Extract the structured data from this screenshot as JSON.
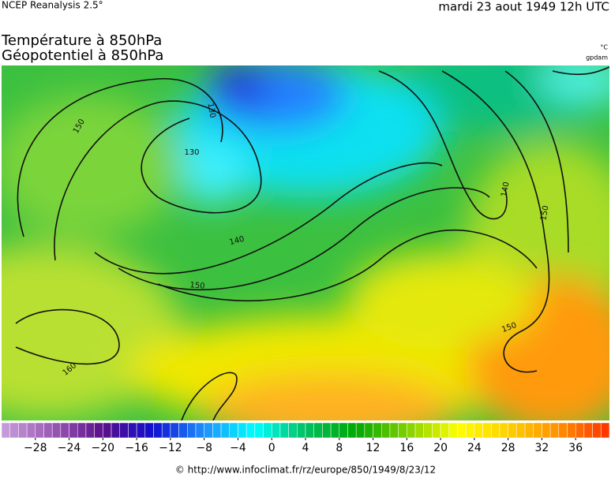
{
  "header": {
    "source": "NCEP Reanalysis 2.5°",
    "date": "mardi 23 aout 1949 12h UTC",
    "title_line1": "Température à 850hPa",
    "title_line2": "Géopotentiel à 850hPa",
    "unit_temperature": "°C",
    "unit_geopotential": "gpdam"
  },
  "contour_labels": [
    150,
    130,
    130,
    140,
    150,
    160,
    140,
    150,
    150
  ],
  "colorbar": {
    "lim": [
      -32,
      40
    ],
    "stops": [
      "#c9a0dc",
      "#9b59b6",
      "#5b0f8a",
      "#1010d0",
      "#1e90ff",
      "#00ffff",
      "#00c060",
      "#00a800",
      "#80d000",
      "#ffff00",
      "#ffd000",
      "#ff9000",
      "#ff3000"
    ],
    "ticks": [
      {
        "value": -28,
        "label": "−28"
      },
      {
        "value": -24,
        "label": "−24"
      },
      {
        "value": -20,
        "label": "−20"
      },
      {
        "value": -16,
        "label": "−16"
      },
      {
        "value": -12,
        "label": "−12"
      },
      {
        "value": -8,
        "label": "−8"
      },
      {
        "value": -4,
        "label": "−4"
      },
      0,
      4,
      8,
      12,
      16,
      20,
      24,
      28,
      32,
      36
    ]
  },
  "footer": "© http://www.infoclimat.fr/rz/europe/850/1949/8/23/12"
}
